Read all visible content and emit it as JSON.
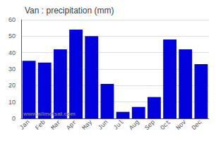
{
  "chart_data": {
    "type": "bar",
    "title": "Van : precipitation (mm)",
    "categories": [
      "Jan",
      "Feb",
      "Mar",
      "Apr",
      "May",
      "Jun",
      "Jul",
      "Aug",
      "Sep",
      "Oct",
      "Nov",
      "Dec"
    ],
    "values": [
      35,
      34,
      42,
      54,
      50,
      21,
      4,
      7,
      13,
      48,
      42,
      33
    ],
    "color": "#0000dd",
    "ylim": [
      0,
      60
    ],
    "yticks": [
      0,
      10,
      20,
      30,
      40,
      50,
      60
    ],
    "grid": true,
    "annotations": [
      "www.allmetsat.com"
    ]
  }
}
